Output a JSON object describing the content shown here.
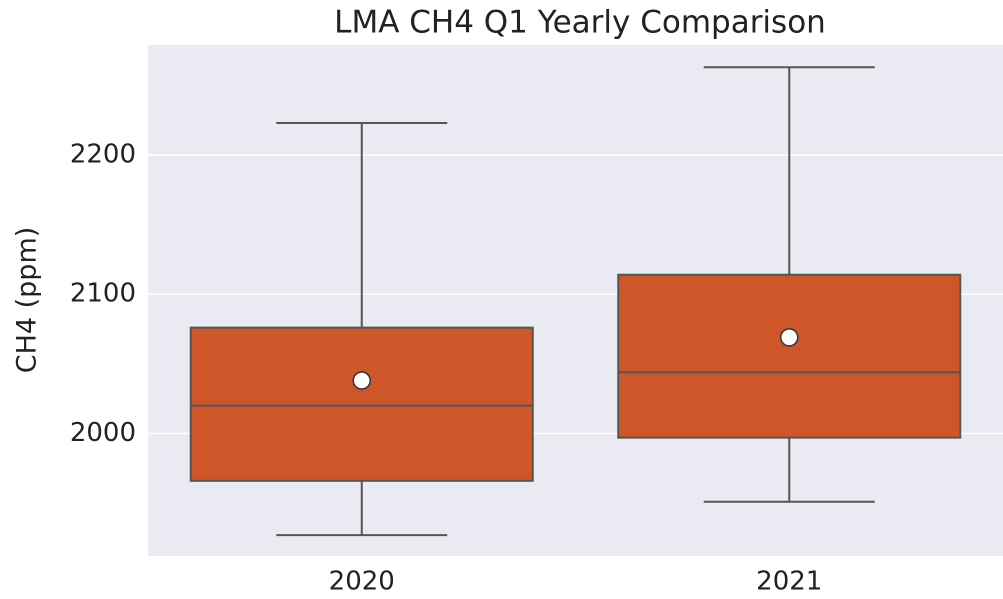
{
  "chart_data": {
    "type": "box",
    "title": "LMA CH4 Q1 Yearly Comparison",
    "y_label": "CH4 (ppm)",
    "categories": [
      "2020",
      "2021"
    ],
    "boxes": [
      {
        "whislo": 1927,
        "q1": 1966,
        "med": 2020,
        "q3": 2076,
        "whishi": 2223,
        "mean": 2038
      },
      {
        "whislo": 1951,
        "q1": 1997,
        "med": 2044,
        "q3": 2114,
        "whishi": 2263,
        "mean": 2069
      }
    ],
    "color": "#cf5629",
    "ylim": [
      1912,
      2279
    ],
    "yticks": [
      2000,
      2100,
      2200
    ],
    "grid": true
  }
}
